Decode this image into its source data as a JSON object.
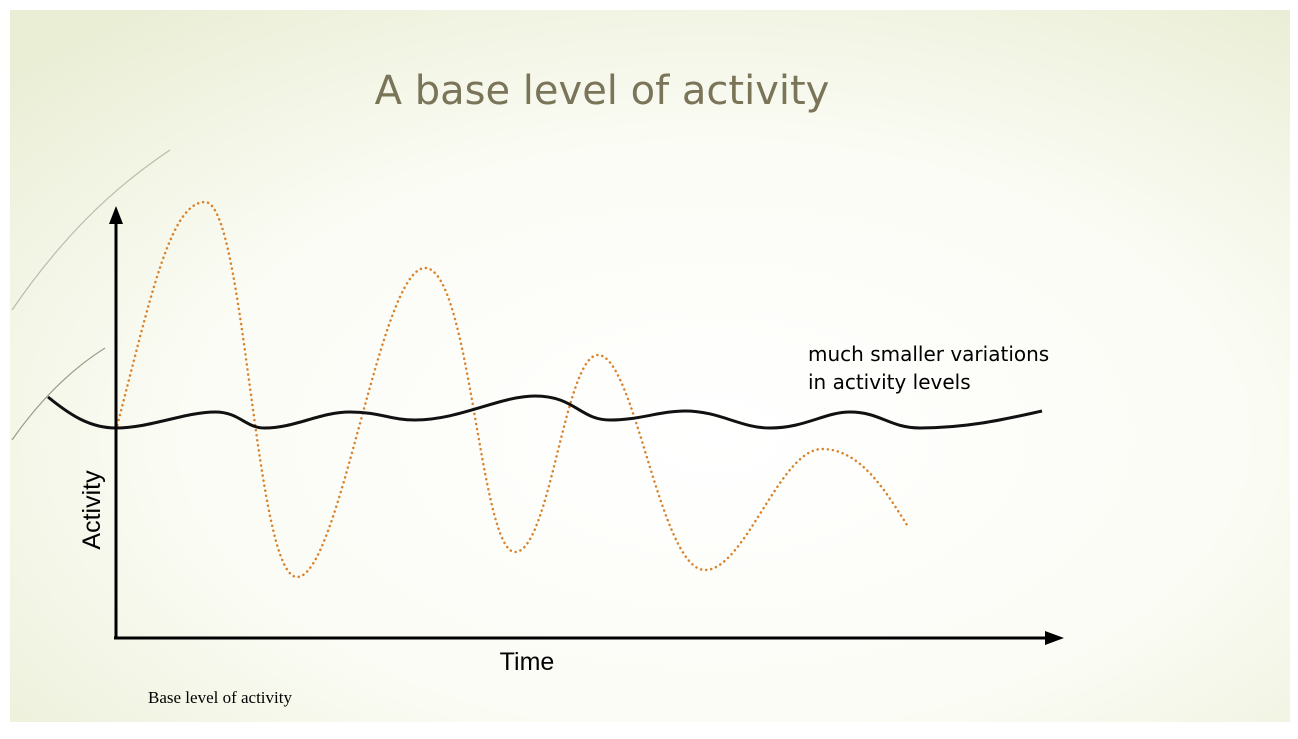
{
  "slide": {
    "title": "A base level of activity",
    "caption": "Base level of activity"
  },
  "diagram": {
    "y_axis_label": "Activity",
    "x_axis_label": "Time",
    "annotation": [
      "much smaller variations",
      "in activity levels"
    ]
  }
}
